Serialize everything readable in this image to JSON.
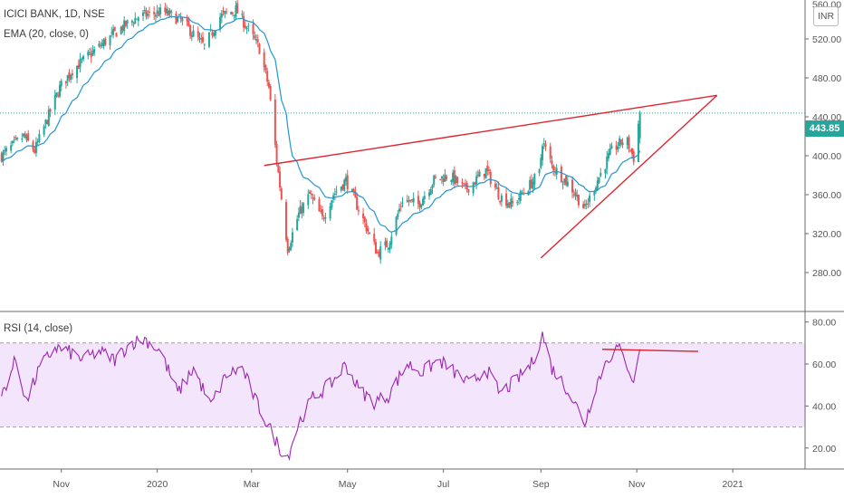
{
  "header": {
    "symbol_line": "ICICI BANK, 1D, NSE",
    "ema_line": "EMA (20, close, 0)",
    "rsi_line": "RSI (14, close)",
    "currency": "INR"
  },
  "last_price": "443.85",
  "colors": {
    "up": "#26a69a",
    "down": "#ef5350",
    "ema": "#2196d3",
    "rsi": "#9c27b0",
    "rsi_band": "#f3e5fb",
    "trendline": "#e0242f",
    "price_line": "#26a69a"
  },
  "chart_data": [
    {
      "type": "candlestick",
      "title": "ICICI BANK, 1D, NSE",
      "overlay": "EMA (20, close, 0)",
      "ylim": [
        240,
        560
      ],
      "y_ticks": [
        "520.00",
        "480.00",
        "440.00",
        "400.00",
        "360.00",
        "320.00",
        "280.00"
      ],
      "y_tick_values": [
        520,
        480,
        440,
        400,
        360,
        320,
        280
      ],
      "top_tick_partial": "560.00",
      "x_ticks": [
        "Nov",
        "2020",
        "Mar",
        "May",
        "Jul",
        "Sep",
        "Nov",
        "2021"
      ],
      "x_tick_dates": [
        "2019-11-01",
        "2020-01-01",
        "2020-03-01",
        "2020-05-01",
        "2020-07-01",
        "2020-09-01",
        "2020-11-01",
        "2021-01-01"
      ],
      "x_range": [
        "2019-09-23",
        "2021-02-16"
      ],
      "last_price": 443.85,
      "anchors": [
        [
          "2019-09-24",
          400
        ],
        [
          "2019-10-08",
          420
        ],
        [
          "2019-10-15",
          405
        ],
        [
          "2019-10-31",
          470
        ],
        [
          "2019-11-08",
          488
        ],
        [
          "2019-11-25",
          512
        ],
        [
          "2019-12-08",
          530
        ],
        [
          "2019-12-20",
          543
        ],
        [
          "2020-01-05",
          548
        ],
        [
          "2020-01-17",
          538
        ],
        [
          "2020-01-31",
          512
        ],
        [
          "2020-02-10",
          543
        ],
        [
          "2020-02-20",
          550
        ],
        [
          "2020-02-27",
          532
        ],
        [
          "2020-03-06",
          510
        ],
        [
          "2020-03-12",
          470
        ],
        [
          "2020-03-17",
          395
        ],
        [
          "2020-03-24",
          305
        ],
        [
          "2020-03-31",
          340
        ],
        [
          "2020-04-07",
          360
        ],
        [
          "2020-04-15",
          335
        ],
        [
          "2020-04-22",
          360
        ],
        [
          "2020-04-30",
          375
        ],
        [
          "2020-05-10",
          338
        ],
        [
          "2020-05-20",
          300
        ],
        [
          "2020-05-27",
          310
        ],
        [
          "2020-06-05",
          355
        ],
        [
          "2020-06-15",
          350
        ],
        [
          "2020-06-25",
          375
        ],
        [
          "2020-07-05",
          380
        ],
        [
          "2020-07-15",
          365
        ],
        [
          "2020-07-28",
          385
        ],
        [
          "2020-08-06",
          358
        ],
        [
          "2020-08-14",
          350
        ],
        [
          "2020-08-25",
          370
        ],
        [
          "2020-08-31",
          382
        ],
        [
          "2020-09-02",
          415
        ],
        [
          "2020-09-08",
          390
        ],
        [
          "2020-09-20",
          368
        ],
        [
          "2020-09-29",
          345
        ],
        [
          "2020-10-07",
          375
        ],
        [
          "2020-10-16",
          405
        ],
        [
          "2020-10-25",
          418
        ],
        [
          "2020-10-30",
          398
        ],
        [
          "2020-11-03",
          443.85
        ]
      ],
      "trendlines": [
        {
          "from": [
            "2020-03-09",
            390
          ],
          "to": [
            "2020-12-22",
            462
          ]
        },
        {
          "from": [
            "2020-09-01",
            295
          ],
          "to": [
            "2020-12-22",
            462
          ]
        }
      ]
    },
    {
      "type": "line",
      "title": "RSI (14, close)",
      "ylim": [
        10,
        85
      ],
      "y_ticks": [
        "80.00",
        "60.00",
        "40.00",
        "20.00"
      ],
      "y_tick_values": [
        80,
        60,
        40,
        20
      ],
      "bands": [
        70,
        30
      ],
      "anchors": [
        [
          "2019-09-24",
          45
        ],
        [
          "2019-10-03",
          62
        ],
        [
          "2019-10-10",
          42
        ],
        [
          "2019-10-18",
          58
        ],
        [
          "2019-10-28",
          68
        ],
        [
          "2019-11-05",
          66
        ],
        [
          "2019-11-15",
          62
        ],
        [
          "2019-11-25",
          66
        ],
        [
          "2019-12-05",
          62
        ],
        [
          "2019-12-15",
          70
        ],
        [
          "2019-12-24",
          72
        ],
        [
          "2020-01-03",
          66
        ],
        [
          "2020-01-14",
          46
        ],
        [
          "2020-01-24",
          58
        ],
        [
          "2020-02-04",
          40
        ],
        [
          "2020-02-14",
          55
        ],
        [
          "2020-02-24",
          58
        ],
        [
          "2020-03-04",
          42
        ],
        [
          "2020-03-12",
          30
        ],
        [
          "2020-03-19",
          20
        ],
        [
          "2020-03-24",
          16
        ],
        [
          "2020-03-31",
          32
        ],
        [
          "2020-04-09",
          44
        ],
        [
          "2020-04-20",
          50
        ],
        [
          "2020-04-30",
          60
        ],
        [
          "2020-05-08",
          48
        ],
        [
          "2020-05-18",
          42
        ],
        [
          "2020-05-27",
          45
        ],
        [
          "2020-06-08",
          60
        ],
        [
          "2020-06-18",
          56
        ],
        [
          "2020-06-28",
          62
        ],
        [
          "2020-07-08",
          56
        ],
        [
          "2020-07-18",
          50
        ],
        [
          "2020-07-28",
          58
        ],
        [
          "2020-08-06",
          46
        ],
        [
          "2020-08-16",
          52
        ],
        [
          "2020-08-26",
          60
        ],
        [
          "2020-09-02",
          74
        ],
        [
          "2020-09-08",
          58
        ],
        [
          "2020-09-18",
          48
        ],
        [
          "2020-09-29",
          32
        ],
        [
          "2020-10-06",
          50
        ],
        [
          "2020-10-13",
          62
        ],
        [
          "2020-10-20",
          68
        ],
        [
          "2020-10-27",
          58
        ],
        [
          "2020-10-31",
          50
        ],
        [
          "2020-11-03",
          67
        ]
      ],
      "trendline": {
        "from": [
          "2020-10-10",
          67
        ],
        "to": [
          "2020-12-10",
          66
        ]
      }
    }
  ]
}
